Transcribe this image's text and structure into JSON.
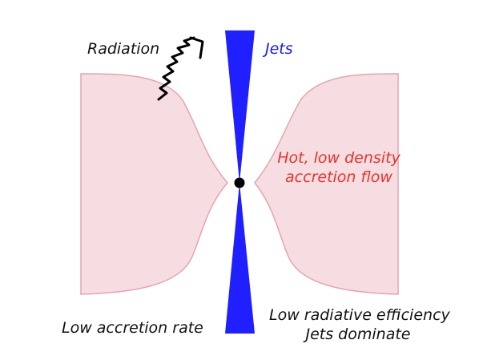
{
  "labels": {
    "radiation": "Radiation",
    "jets": "Jets",
    "flow_line1": "Hot, low density",
    "flow_line2": "accretion flow",
    "low_accretion": "Low accretion rate",
    "efficiency_line1": "Low radiative efficiency",
    "efficiency_line2": "Jets dominate"
  },
  "colors": {
    "jet": "#1f1fff",
    "flow_fill": "#f6dde2",
    "flow_stroke": "#e6a3b4",
    "flow_text": "#e8342a",
    "jets_text": "#1a1aee",
    "black_hole": "#000000",
    "text": "#111111"
  },
  "icons": {
    "photon": "wavy-arrow-icon"
  }
}
